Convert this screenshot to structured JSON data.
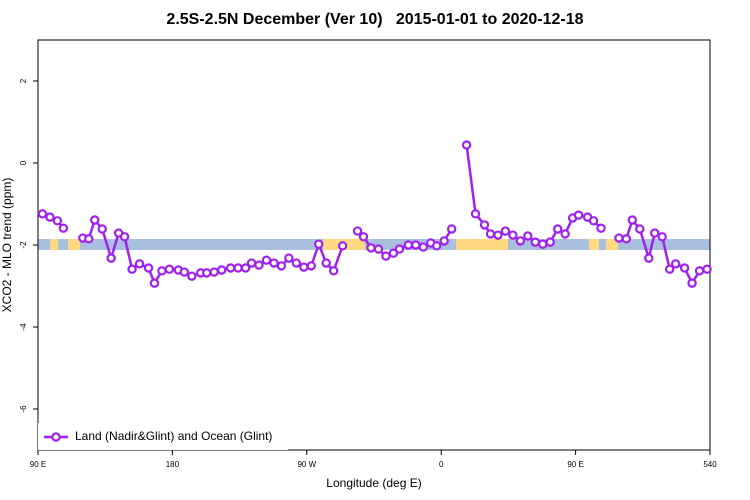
{
  "chart_data": {
    "type": "line",
    "title": "2.5S-2.5N December (Ver 10)   2015-01-01 to 2020-12-18",
    "x_label": "Longitude (deg E)",
    "y_label": "XCO2 - MLO trend (ppm)",
    "xlim": [
      90,
      540
    ],
    "ylim": [
      -7,
      3
    ],
    "xticks": [
      {
        "value": 90,
        "label": "90 E"
      },
      180,
      {
        "value": 270,
        "label": "90 W"
      },
      {
        "value": 360,
        "label": "0"
      },
      {
        "value": 450,
        "label": "90 E"
      },
      540
    ],
    "yticks": [
      -6,
      -4,
      -2,
      0,
      2
    ],
    "legend": "bottom-left",
    "x": [
      93,
      98,
      103,
      107,
      null,
      120,
      124,
      128,
      133,
      139,
      144,
      148,
      153,
      158,
      164,
      168,
      173,
      178,
      184,
      188,
      193,
      199,
      203,
      208,
      213,
      219,
      224,
      229,
      233,
      238,
      243,
      248,
      253,
      258,
      263,
      268,
      273,
      278,
      283,
      288,
      294,
      null,
      304,
      308,
      313,
      318,
      323,
      328,
      332,
      338,
      343,
      348,
      353,
      357,
      362,
      367,
      null,
      377,
      383,
      389,
      393,
      398,
      403,
      408,
      413,
      418,
      423,
      428,
      433,
      438,
      443,
      448,
      452,
      458,
      462,
      467,
      null,
      479,
      484,
      488,
      493,
      499,
      503,
      508,
      513,
      517,
      523,
      528,
      533,
      538
    ],
    "series": [
      {
        "name": "Land (Nadir&Glint) and Ocean (Glint)",
        "color": "#a020f0",
        "values": [
          -1.24,
          -1.32,
          -1.41,
          -1.59,
          null,
          -1.83,
          -1.85,
          -1.39,
          -1.61,
          -2.32,
          -1.71,
          -1.8,
          -2.59,
          -2.46,
          -2.56,
          -2.93,
          -2.63,
          -2.59,
          -2.61,
          -2.66,
          -2.76,
          -2.68,
          -2.68,
          -2.66,
          -2.61,
          -2.56,
          -2.56,
          -2.56,
          -2.44,
          -2.49,
          -2.37,
          -2.44,
          -2.51,
          -2.32,
          -2.44,
          -2.54,
          -2.51,
          -1.98,
          -2.44,
          -2.63,
          -2.02,
          null,
          -1.66,
          -1.8,
          -2.07,
          -2.1,
          -2.27,
          -2.2,
          -2.1,
          -2.0,
          -2.0,
          -2.05,
          -1.95,
          -2.02,
          -1.9,
          -1.61,
          null,
          0.44,
          -1.24,
          -1.51,
          -1.73,
          -1.76,
          -1.66,
          -1.76,
          -1.9,
          -1.78,
          -1.93,
          -1.98,
          -1.93,
          -1.61,
          -1.73,
          -1.34,
          -1.27,
          -1.32,
          -1.41,
          -1.59,
          null,
          -1.83,
          -1.85,
          -1.39,
          -1.61,
          -2.32,
          -1.71,
          -1.8,
          -2.59,
          -2.46,
          -2.56,
          -2.93,
          -2.63,
          -2.59
        ]
      }
    ]
  }
}
